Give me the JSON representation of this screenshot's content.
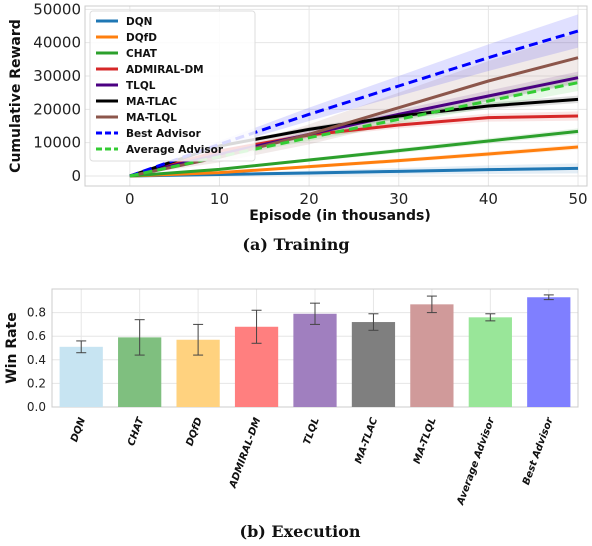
{
  "chart_data": [
    {
      "type": "line",
      "caption": "(a) Training",
      "xlabel": "Episode (in thousands)",
      "ylabel": "Cumulative Reward",
      "xlim": [
        -5,
        51
      ],
      "ylim": [
        -3000,
        51000
      ],
      "x_ticks": [
        0,
        10,
        20,
        30,
        40,
        50
      ],
      "y_ticks": [
        0,
        10000,
        20000,
        30000,
        40000,
        50000
      ],
      "grid": true,
      "legend_position": "top-left",
      "x": [
        0,
        10,
        20,
        30,
        40,
        50
      ],
      "series": [
        {
          "name": "DQN",
          "color": "#1f77b4",
          "style": "solid",
          "values": [
            0,
            450,
            900,
            1400,
            1900,
            2300
          ],
          "band": [
            0,
            300,
            700,
            1000,
            1300,
            1500
          ]
        },
        {
          "name": "DQfD",
          "color": "#ff7f0e",
          "style": "solid",
          "values": [
            0,
            1000,
            2800,
            4600,
            6600,
            8700
          ],
          "band": [
            0,
            200,
            500,
            600,
            700,
            800
          ]
        },
        {
          "name": "CHAT",
          "color": "#2ca02c",
          "style": "solid",
          "values": [
            0,
            2000,
            4800,
            7600,
            10500,
            13400
          ],
          "band": [
            0,
            300,
            500,
            700,
            800,
            900
          ]
        },
        {
          "name": "ADMIRAL-DM",
          "color": "#d62728",
          "style": "solid",
          "values": [
            0,
            7500,
            12300,
            15300,
            17500,
            18000
          ],
          "band": [
            0,
            500,
            800,
            1000,
            1200,
            1400
          ]
        },
        {
          "name": "TLQL",
          "color": "#4b0082",
          "style": "solid",
          "values": [
            0,
            6500,
            12500,
            18500,
            24000,
            29500
          ],
          "band": [
            0,
            500,
            1000,
            1300,
            1600,
            1800
          ]
        },
        {
          "name": "MA-TLAC",
          "color": "#000000",
          "style": "solid",
          "values": [
            0,
            9000,
            14000,
            18000,
            21000,
            23000
          ],
          "band": [
            0,
            500,
            700,
            900,
            1000,
            1100
          ]
        },
        {
          "name": "MA-TLQL",
          "color": "#8c564b",
          "style": "solid",
          "values": [
            0,
            5600,
            12500,
            20500,
            28500,
            35500
          ],
          "band": [
            0,
            1500,
            3000,
            4500,
            6000,
            7500
          ]
        },
        {
          "name": "Best Advisor",
          "color": "#0000ff",
          "style": "dashed",
          "values": [
            0,
            9500,
            18500,
            27000,
            35500,
            43500
          ],
          "band": [
            0,
            1000,
            2000,
            3000,
            4000,
            5000
          ]
        },
        {
          "name": "Average Advisor",
          "color": "#33cc33",
          "style": "dashed",
          "values": [
            0,
            5800,
            11500,
            17000,
            22500,
            28000
          ],
          "band": [
            0,
            500,
            1000,
            1500,
            2000,
            2500
          ]
        }
      ]
    },
    {
      "type": "bar",
      "caption": "(b) Execution",
      "ylabel": "Win Rate",
      "ylim": [
        0,
        1.0
      ],
      "y_ticks": [
        0.0,
        0.2,
        0.4,
        0.6,
        0.8
      ],
      "grid": true,
      "categories": [
        "DQN",
        "CHAT",
        "DQfD",
        "ADMIRAL-DM",
        "TLQL",
        "MA-TLAC",
        "MA-TLQL",
        "Average Advisor",
        "Best Advisor"
      ],
      "values": [
        0.51,
        0.59,
        0.57,
        0.68,
        0.79,
        0.72,
        0.87,
        0.76,
        0.93
      ],
      "errors": [
        0.05,
        0.15,
        0.13,
        0.14,
        0.09,
        0.07,
        0.07,
        0.03,
        0.02
      ],
      "colors": [
        "#c7e4f2",
        "#7fbf7f",
        "#ffd27f",
        "#ff7f7f",
        "#a07fbf",
        "#7f7f7f",
        "#d09a9a",
        "#99e699",
        "#7f7fff"
      ]
    }
  ]
}
